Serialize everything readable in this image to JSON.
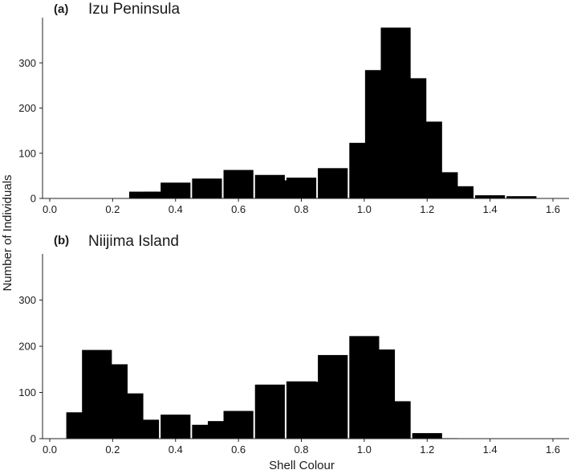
{
  "chart_data": [
    {
      "type": "bar",
      "panel_label": "(a)",
      "title": "Izu Peninsula",
      "xlabel": "",
      "ylabel": "",
      "xlim": [
        -0.02,
        1.62
      ],
      "ylim": [
        0,
        400
      ],
      "xticks": [
        0.0,
        0.2,
        0.4,
        0.6,
        0.8,
        1.0,
        1.2,
        1.4,
        1.6
      ],
      "xtick_labels": [
        "0.0",
        "0.2",
        "0.4",
        "0.6",
        "0.8",
        "1.0",
        "1.2",
        "1.4",
        "1.6"
      ],
      "yticks": [
        0,
        100,
        200,
        300
      ],
      "ytick_labels": [
        "0",
        "100",
        "200",
        "300"
      ],
      "bin_width": 0.1,
      "bars": [
        {
          "x": 0.3,
          "value": 15
        },
        {
          "x": 0.35,
          "value": 15
        },
        {
          "x": 0.4,
          "value": 35
        },
        {
          "x": 0.5,
          "value": 44
        },
        {
          "x": 0.6,
          "value": 63
        },
        {
          "x": 0.7,
          "value": 52
        },
        {
          "x": 0.75,
          "value": 40
        },
        {
          "x": 0.8,
          "value": 46
        },
        {
          "x": 0.9,
          "value": 67
        },
        {
          "x": 1.0,
          "value": 123
        },
        {
          "x": 1.05,
          "value": 284
        },
        {
          "x": 1.1,
          "value": 378
        },
        {
          "x": 1.15,
          "value": 266
        },
        {
          "x": 1.2,
          "value": 170
        },
        {
          "x": 1.25,
          "value": 58
        },
        {
          "x": 1.3,
          "value": 27
        },
        {
          "x": 1.4,
          "value": 7
        },
        {
          "x": 1.5,
          "value": 5
        }
      ],
      "grid": false
    },
    {
      "type": "bar",
      "panel_label": "(b)",
      "title": "Niijima Island",
      "xlabel": "Shell Colour",
      "ylabel": "",
      "xlim": [
        -0.02,
        1.62
      ],
      "ylim": [
        0,
        400
      ],
      "xticks": [
        0.0,
        0.2,
        0.4,
        0.6,
        0.8,
        1.0,
        1.2,
        1.4,
        1.6
      ],
      "xtick_labels": [
        "0.0",
        "0.2",
        "0.4",
        "0.6",
        "0.8",
        "1.0",
        "1.2",
        "1.4",
        "1.6"
      ],
      "yticks": [
        0,
        100,
        200,
        300
      ],
      "ytick_labels": [
        "0",
        "100",
        "200",
        "300"
      ],
      "bin_width": 0.1,
      "bars": [
        {
          "x": 0.1,
          "value": 57
        },
        {
          "x": 0.15,
          "value": 192
        },
        {
          "x": 0.2,
          "value": 161
        },
        {
          "x": 0.25,
          "value": 98
        },
        {
          "x": 0.3,
          "value": 41
        },
        {
          "x": 0.4,
          "value": 52
        },
        {
          "x": 0.5,
          "value": 30
        },
        {
          "x": 0.55,
          "value": 38
        },
        {
          "x": 0.6,
          "value": 60
        },
        {
          "x": 0.7,
          "value": 117
        },
        {
          "x": 0.8,
          "value": 124
        },
        {
          "x": 0.85,
          "value": 123
        },
        {
          "x": 0.9,
          "value": 181
        },
        {
          "x": 1.0,
          "value": 222
        },
        {
          "x": 1.05,
          "value": 193
        },
        {
          "x": 1.1,
          "value": 81
        },
        {
          "x": 1.2,
          "value": 12
        },
        {
          "x": 1.25,
          "value": 1
        }
      ],
      "grid": false
    }
  ],
  "shared": {
    "ylabel": "Number of Individuals",
    "bar_color": "#000000",
    "axis_color": "#222222"
  }
}
